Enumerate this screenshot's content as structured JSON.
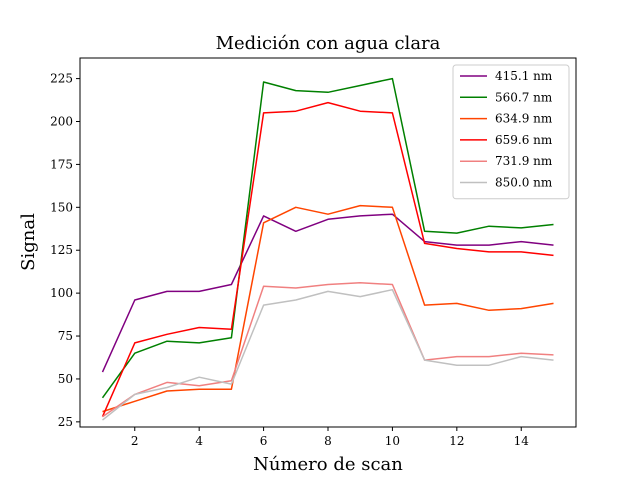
{
  "chart_data": {
    "type": "line",
    "title": "Medición con agua clara",
    "xlabel": "Número de scan",
    "ylabel": "Signal",
    "xlim": [
      0.3,
      15.7
    ],
    "ylim": [
      22,
      237
    ],
    "xticks": [
      2,
      4,
      6,
      8,
      10,
      12,
      14
    ],
    "yticks": [
      25,
      50,
      75,
      100,
      125,
      150,
      175,
      200,
      225
    ],
    "grid": false,
    "legend_position": "top-right",
    "x": [
      1,
      2,
      3,
      4,
      5,
      6,
      7,
      8,
      9,
      10,
      11,
      12,
      13,
      14,
      15
    ],
    "series": [
      {
        "name": "415.1 nm",
        "color": "#800080",
        "values": [
          54,
          96,
          101,
          101,
          105,
          145,
          136,
          143,
          145,
          146,
          130,
          128,
          128,
          130,
          128
        ]
      },
      {
        "name": "560.7 nm",
        "color": "#008000",
        "values": [
          39,
          65,
          72,
          71,
          74,
          223,
          218,
          217,
          221,
          225,
          136,
          135,
          139,
          138,
          140
        ]
      },
      {
        "name": "634.9 nm",
        "color": "#ff4500",
        "values": [
          31,
          37,
          43,
          44,
          44,
          141,
          150,
          146,
          151,
          150,
          93,
          94,
          90,
          91,
          94
        ]
      },
      {
        "name": "659.6 nm",
        "color": "#ff0000",
        "values": [
          28,
          71,
          76,
          80,
          79,
          205,
          206,
          211,
          206,
          205,
          129,
          126,
          124,
          124,
          122
        ]
      },
      {
        "name": "731.9 nm",
        "color": "#f08080",
        "values": [
          28,
          41,
          48,
          46,
          49,
          104,
          103,
          105,
          106,
          105,
          61,
          63,
          63,
          65,
          64
        ]
      },
      {
        "name": "850.0 nm",
        "color": "#c0c0c0",
        "values": [
          26,
          41,
          45,
          51,
          47,
          93,
          96,
          101,
          98,
          102,
          61,
          58,
          58,
          63,
          61
        ]
      }
    ]
  }
}
